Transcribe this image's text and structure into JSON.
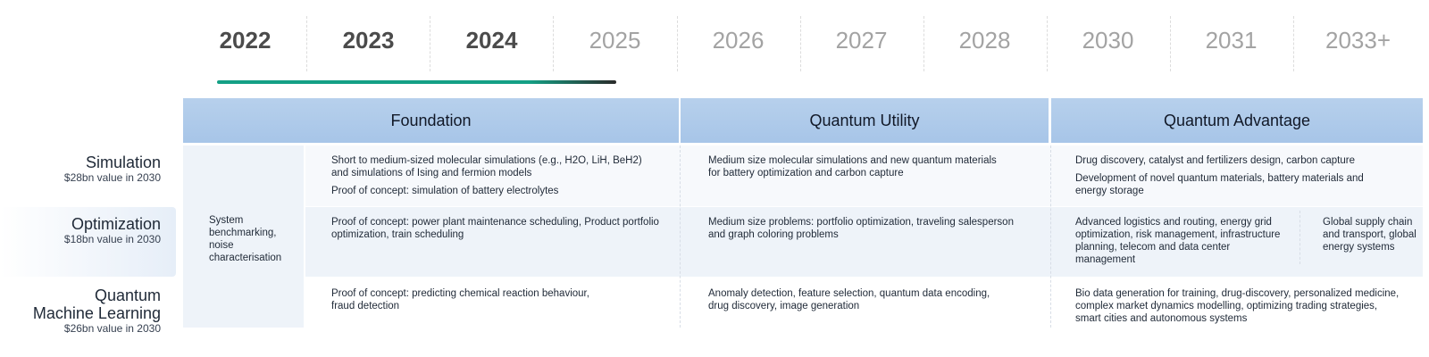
{
  "timeline": {
    "years": [
      "2022",
      "2023",
      "2024",
      "2025",
      "2026",
      "2027",
      "2028",
      "2030",
      "2031",
      "2033+"
    ],
    "progress_fraction_through_years": 0.32
  },
  "phases": {
    "foundation": "Foundation",
    "utility": "Quantum Utility",
    "advantage": "Quantum Advantage"
  },
  "rows": {
    "simulation": {
      "title": "Simulation",
      "value": "$28bn value in 2030"
    },
    "optimization": {
      "title": "Optimization",
      "value": "$18bn value in 2030"
    },
    "qml": {
      "title_line1": "Quantum",
      "title_line2": "Machine Learning",
      "value": "$26bn value in 2030"
    }
  },
  "system_box": {
    "line1": "System",
    "line2": "benchmarking,",
    "line3": "noise",
    "line4": "characterisation"
  },
  "cells": {
    "sim_foundation": {
      "line1": "Short to medium-sized molecular simulations (e.g., H2O, LiH, BeH2)",
      "line2": "and simulations of Ising and fermion models",
      "line3": "Proof of concept: simulation of battery electrolytes"
    },
    "sim_utility": {
      "line1": "Medium size molecular simulations and new quantum materials",
      "line2": "for battery optimization and carbon capture"
    },
    "sim_advantage": {
      "line1": "Drug discovery, catalyst and fertilizers design, carbon capture",
      "line2": "Development of novel quantum materials, battery materials and",
      "line3": "energy storage"
    },
    "opt_foundation": {
      "line1": "Proof of concept: power plant maintenance scheduling, Product portfolio",
      "line2": "optimization, train scheduling"
    },
    "opt_utility": {
      "line1": "Medium size problems: portfolio optimization, traveling salesperson",
      "line2": "and graph coloring problems"
    },
    "opt_advantage_a": {
      "line1": "Advanced logistics and routing, energy grid",
      "line2": "optimization, risk management, infrastructure",
      "line3": "planning, telecom and data center",
      "line4": "management"
    },
    "opt_advantage_b": {
      "line1": "Global supply chain",
      "line2": "and transport, global",
      "line3": "energy systems"
    },
    "qml_foundation": {
      "line1": "Proof of concept:  predicting chemical reaction behaviour,",
      "line2": "fraud detection"
    },
    "qml_utility": {
      "line1": "Anomaly detection, feature selection, quantum data encoding,",
      "line2": "drug discovery, image generation"
    },
    "qml_advantage": {
      "line1": "Bio data generation for training, drug-discovery, personalized medicine,",
      "line2": "complex market dynamics modelling, optimizing trading strategies,",
      "line3": "smart cities and autonomous systems"
    }
  }
}
